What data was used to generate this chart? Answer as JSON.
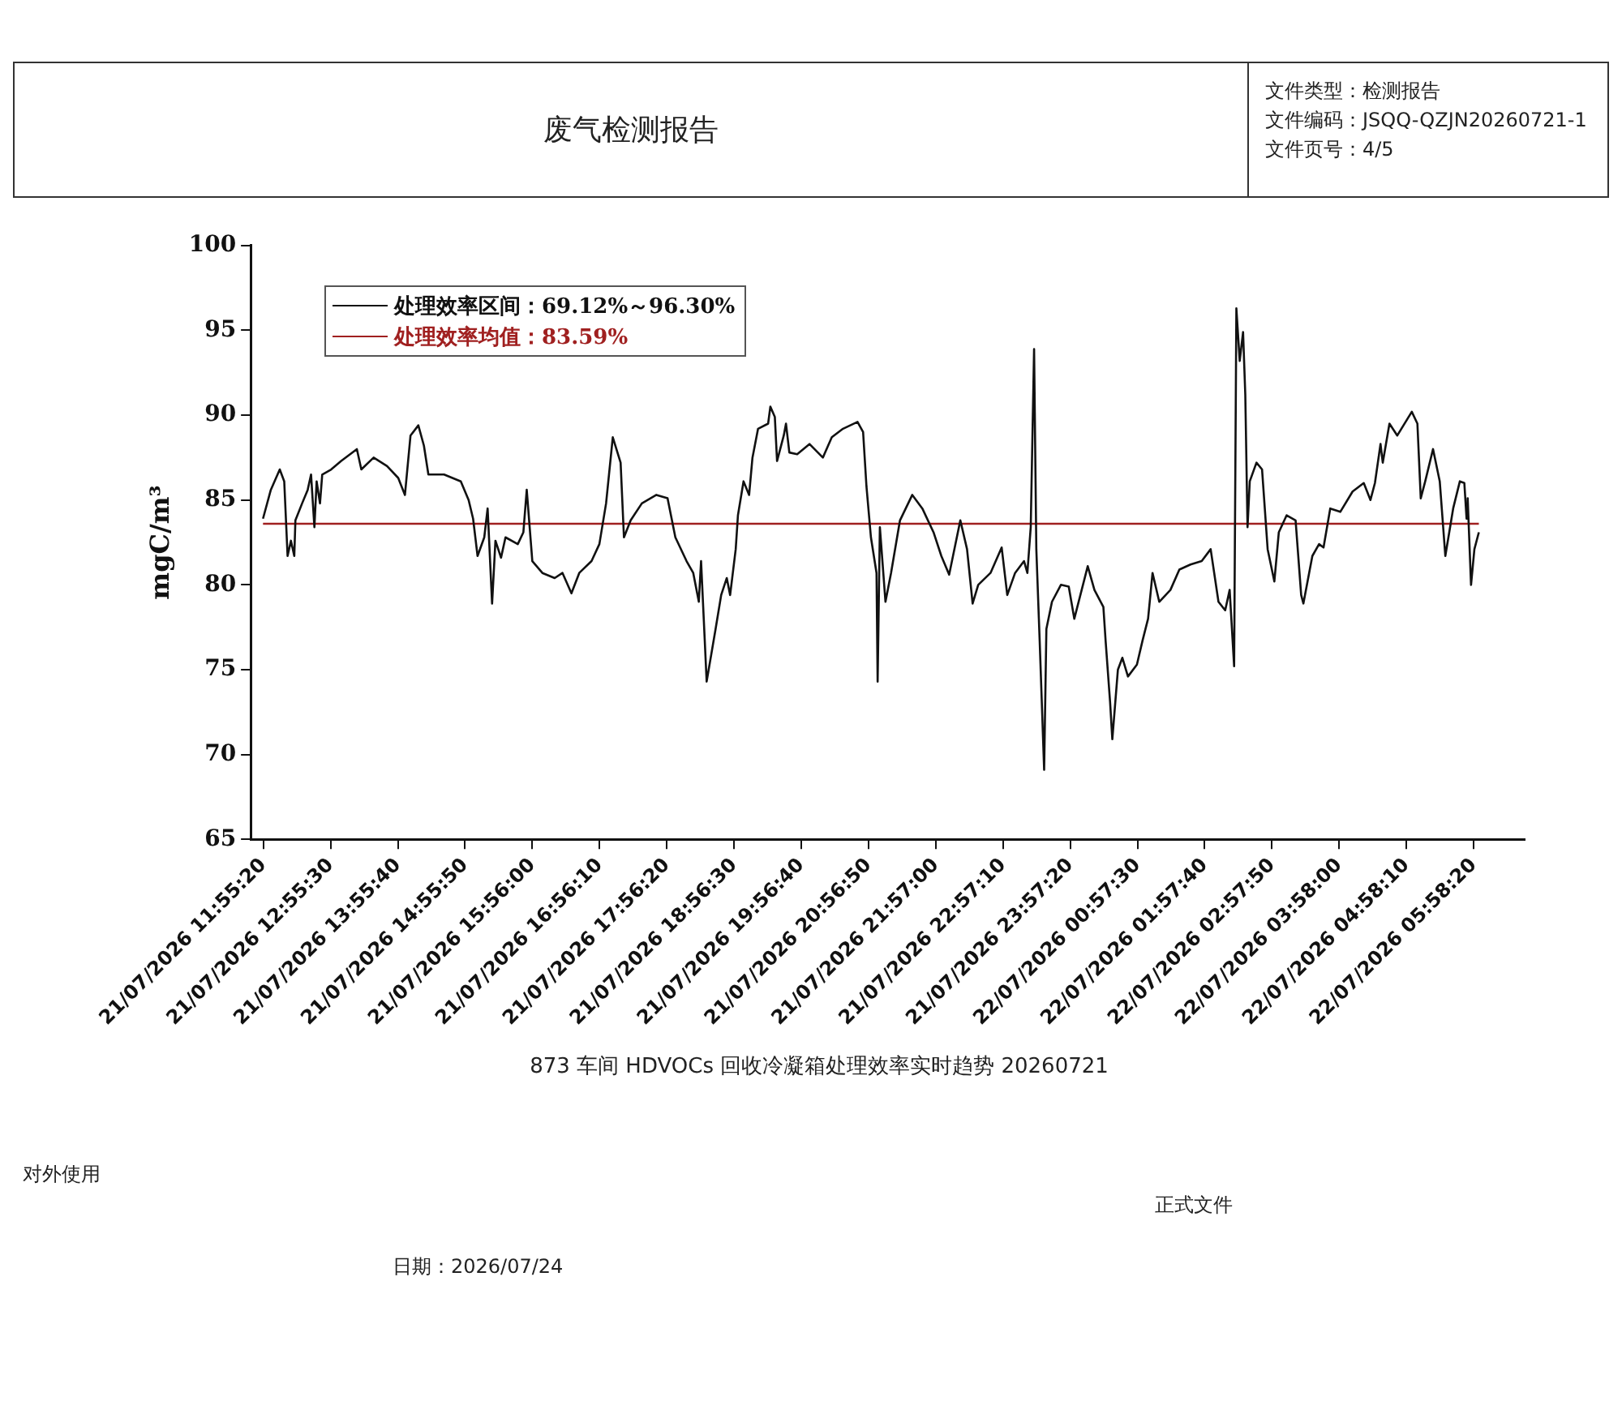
{
  "chart_data": {
    "type": "line",
    "title": "873 车间 HDVOCs 回收冷凝箱处理效率实时趋势 20260721",
    "subtitle": "废气检测报告",
    "ylabel": "mgC/m³",
    "xlim": [
      "2026-07-21T11:44",
      "2026-07-22T06:44"
    ],
    "ylim": [
      65,
      100
    ],
    "yticks": [
      65,
      70,
      75,
      80,
      85,
      90,
      95,
      100
    ],
    "xticks": [
      {
        "value": "2026-07-21T11:55:20",
        "label": "21/07/2026 11:55:20"
      },
      {
        "value": "2026-07-21T12:55:30",
        "label": "21/07/2026 12:55:30"
      },
      {
        "value": "2026-07-21T13:55:40",
        "label": "21/07/2026 13:55:40"
      },
      {
        "value": "2026-07-21T14:55:50",
        "label": "21/07/2026 14:55:50"
      },
      {
        "value": "2026-07-21T15:56:00",
        "label": "21/07/2026 15:56:00"
      },
      {
        "value": "2026-07-21T16:56:10",
        "label": "21/07/2026 16:56:10"
      },
      {
        "value": "2026-07-21T17:56:20",
        "label": "21/07/2026 17:56:20"
      },
      {
        "value": "2026-07-21T18:56:30",
        "label": "21/07/2026 18:56:30"
      },
      {
        "value": "2026-07-21T19:56:40",
        "label": "21/07/2026 19:56:40"
      },
      {
        "value": "2026-07-21T20:56:50",
        "label": "21/07/2026 20:56:50"
      },
      {
        "value": "2026-07-21T21:57:00",
        "label": "21/07/2026 21:57:00"
      },
      {
        "value": "2026-07-21T22:57:10",
        "label": "21/07/2026 22:57:10"
      },
      {
        "value": "2026-07-21T23:57:20",
        "label": "21/07/2026 23:57:20"
      },
      {
        "value": "2026-07-22T00:57:30",
        "label": "22/07/2026 00:57:30"
      },
      {
        "value": "2026-07-22T01:57:40",
        "label": "22/07/2026 01:57:40"
      },
      {
        "value": "2026-07-22T02:57:50",
        "label": "22/07/2026 02:57:50"
      },
      {
        "value": "2026-07-22T03:58:00",
        "label": "22/07/2026 03:58:00"
      },
      {
        "value": "2026-07-22T04:58:10",
        "label": "22/07/2026 04:58:10"
      },
      {
        "value": "2026-07-22T05:58:20",
        "label": "22/07/2026 05:58:20"
      }
    ],
    "legend": "top left",
    "grid": false,
    "annotations": [
      "文件类型：检测报告",
      "文件编码：JSQQ-QZJN20260721-1",
      "文件页号：4/5",
      "对外使用",
      "正式文件",
      "日期：2026/07/24"
    ],
    "series": [
      {
        "name": "处理效率区间：69.12%～96.30%",
        "color": "#111111",
        "x": [
          "2026-07-21T11:55",
          "2026-07-21T12:02",
          "2026-07-21T12:10",
          "2026-07-21T12:14",
          "2026-07-21T12:17",
          "2026-07-21T12:20",
          "2026-07-21T12:23",
          "2026-07-21T12:24",
          "2026-07-21T12:30",
          "2026-07-21T12:35",
          "2026-07-21T12:38",
          "2026-07-21T12:41",
          "2026-07-21T12:43",
          "2026-07-21T12:46",
          "2026-07-21T12:48",
          "2026-07-21T12:56",
          "2026-07-21T13:05",
          "2026-07-21T13:19",
          "2026-07-21T13:23",
          "2026-07-21T13:34",
          "2026-07-21T13:46",
          "2026-07-21T13:56",
          "2026-07-21T14:02",
          "2026-07-21T14:07",
          "2026-07-21T14:14",
          "2026-07-21T14:19",
          "2026-07-21T14:23",
          "2026-07-21T14:37",
          "2026-07-21T14:52",
          "2026-07-21T14:59",
          "2026-07-21T15:03",
          "2026-07-21T15:07",
          "2026-07-21T15:13",
          "2026-07-21T15:16",
          "2026-07-21T15:20",
          "2026-07-21T15:23",
          "2026-07-21T15:28",
          "2026-07-21T15:32",
          "2026-07-21T15:43",
          "2026-07-21T15:48",
          "2026-07-21T15:51",
          "2026-07-21T15:56",
          "2026-07-21T16:05",
          "2026-07-21T16:16",
          "2026-07-21T16:23",
          "2026-07-21T16:31",
          "2026-07-21T16:38",
          "2026-07-21T16:49",
          "2026-07-21T16:56",
          "2026-07-21T17:02",
          "2026-07-21T17:08",
          "2026-07-21T17:15",
          "2026-07-21T17:18",
          "2026-07-21T17:24",
          "2026-07-21T17:34",
          "2026-07-21T17:47",
          "2026-07-21T17:57",
          "2026-07-21T18:04",
          "2026-07-21T18:14",
          "2026-07-21T18:20",
          "2026-07-21T18:25",
          "2026-07-21T18:27",
          "2026-07-21T18:32",
          "2026-07-21T18:40",
          "2026-07-21T18:45",
          "2026-07-21T18:50",
          "2026-07-21T18:53",
          "2026-07-21T18:58",
          "2026-07-21T19:00",
          "2026-07-21T19:05",
          "2026-07-21T19:10",
          "2026-07-21T19:13",
          "2026-07-21T19:18",
          "2026-07-21T19:27",
          "2026-07-21T19:29",
          "2026-07-21T19:33",
          "2026-07-21T19:35",
          "2026-07-21T19:41",
          "2026-07-21T19:43",
          "2026-07-21T19:46",
          "2026-07-21T19:53",
          "2026-07-21T20:04",
          "2026-07-21T20:16",
          "2026-07-21T20:24",
          "2026-07-21T20:34",
          "2026-07-21T20:47",
          "2026-07-21T20:52",
          "2026-07-21T20:55",
          "2026-07-21T20:59",
          "2026-07-21T21:04",
          "2026-07-21T21:05",
          "2026-07-21T21:07",
          "2026-07-21T21:12",
          "2026-07-21T21:17",
          "2026-07-21T21:25",
          "2026-07-21T21:36",
          "2026-07-21T21:45",
          "2026-07-21T21:55",
          "2026-07-21T22:02",
          "2026-07-21T22:09",
          "2026-07-21T22:19",
          "2026-07-21T22:25",
          "2026-07-21T22:30",
          "2026-07-21T22:35",
          "2026-07-21T22:46",
          "2026-07-21T22:56",
          "2026-07-21T23:01",
          "2026-07-21T23:08",
          "2026-07-21T23:16",
          "2026-07-21T23:19",
          "2026-07-21T23:22",
          "2026-07-21T23:25",
          "2026-07-21T23:27",
          "2026-07-21T23:30",
          "2026-07-21T23:34",
          "2026-07-21T23:36",
          "2026-07-21T23:41",
          "2026-07-21T23:49",
          "2026-07-21T23:56",
          "2026-07-22T00:01",
          "2026-07-22T00:13",
          "2026-07-22T00:19",
          "2026-07-22T00:27",
          "2026-07-22T00:29",
          "2026-07-22T00:33",
          "2026-07-22T00:35",
          "2026-07-22T00:40",
          "2026-07-22T00:44",
          "2026-07-22T00:49",
          "2026-07-22T00:57",
          "2026-07-22T01:02",
          "2026-07-22T01:07",
          "2026-07-22T01:11",
          "2026-07-22T01:17",
          "2026-07-22T01:27",
          "2026-07-22T01:35",
          "2026-07-22T01:45",
          "2026-07-22T01:55",
          "2026-07-22T02:03",
          "2026-07-22T02:10",
          "2026-07-22T02:16",
          "2026-07-22T02:20",
          "2026-07-22T02:24",
          "2026-07-22T02:26",
          "2026-07-22T02:29",
          "2026-07-22T02:32",
          "2026-07-22T02:34",
          "2026-07-22T02:36",
          "2026-07-22T02:38",
          "2026-07-22T02:44",
          "2026-07-22T02:49",
          "2026-07-22T02:54",
          "2026-07-22T03:00",
          "2026-07-22T03:04",
          "2026-07-22T03:11",
          "2026-07-22T03:19",
          "2026-07-22T03:24",
          "2026-07-22T03:26",
          "2026-07-22T03:34",
          "2026-07-22T03:40",
          "2026-07-22T03:44",
          "2026-07-22T03:50",
          "2026-07-22T03:59",
          "2026-07-22T04:10",
          "2026-07-22T04:20",
          "2026-07-22T04:26",
          "2026-07-22T04:30",
          "2026-07-22T04:35",
          "2026-07-22T04:37",
          "2026-07-22T04:43",
          "2026-07-22T04:50",
          "2026-07-22T05:03",
          "2026-07-22T05:08",
          "2026-07-22T05:11",
          "2026-07-22T05:15",
          "2026-07-22T05:22",
          "2026-07-22T05:28",
          "2026-07-22T05:33",
          "2026-07-22T05:40",
          "2026-07-22T05:46",
          "2026-07-22T05:50",
          "2026-07-22T05:52",
          "2026-07-22T05:53",
          "2026-07-22T05:56",
          "2026-07-22T05:59",
          "2026-07-22T06:03"
        ],
        "values": [
          83.9,
          85.6,
          86.8,
          86.1,
          81.7,
          82.6,
          81.7,
          83.8,
          84.8,
          85.6,
          86.5,
          83.4,
          86.1,
          84.8,
          86.5,
          86.8,
          87.3,
          88.0,
          86.8,
          87.5,
          87.0,
          86.3,
          85.3,
          88.8,
          89.4,
          88.2,
          86.5,
          86.5,
          86.1,
          85.0,
          83.9,
          81.7,
          82.8,
          84.5,
          78.9,
          82.6,
          81.6,
          82.8,
          82.4,
          83.1,
          85.6,
          81.4,
          80.7,
          80.4,
          80.7,
          79.5,
          80.7,
          81.4,
          82.4,
          84.8,
          88.7,
          87.2,
          82.8,
          83.8,
          84.8,
          85.3,
          85.1,
          82.8,
          81.4,
          80.7,
          79.0,
          81.4,
          74.3,
          77.4,
          79.4,
          80.4,
          79.4,
          82.1,
          84.1,
          86.1,
          85.3,
          87.5,
          89.2,
          89.5,
          90.5,
          89.9,
          87.3,
          88.8,
          89.5,
          87.8,
          87.7,
          88.3,
          87.5,
          88.7,
          89.2,
          89.6,
          89.0,
          85.8,
          82.8,
          80.7,
          74.3,
          83.4,
          79.0,
          80.7,
          83.8,
          85.3,
          84.5,
          83.1,
          81.7,
          80.6,
          83.8,
          82.1,
          78.9,
          80.0,
          80.7,
          82.2,
          79.4,
          80.7,
          81.4,
          80.7,
          83.4,
          93.9,
          82.1,
          76.7,
          69.1,
          77.4,
          79.0,
          80.0,
          79.9,
          78.0,
          81.1,
          79.7,
          78.7,
          76.7,
          73.1,
          70.9,
          75.0,
          75.7,
          74.6,
          75.3,
          76.7,
          78.0,
          80.7,
          79.0,
          79.7,
          80.9,
          81.2,
          81.4,
          82.1,
          79.0,
          78.5,
          79.7,
          75.2,
          96.3,
          93.2,
          94.9,
          91.2,
          83.4,
          86.1,
          87.2,
          86.8,
          82.1,
          80.2,
          83.1,
          84.1,
          83.8,
          79.4,
          78.9,
          81.7,
          82.4,
          82.2,
          84.5,
          84.3,
          85.5,
          86.0,
          85.0,
          86.0,
          88.3,
          87.2,
          89.5,
          88.8,
          90.2,
          89.5,
          85.1,
          86.1,
          88.0,
          86.1,
          81.7,
          84.5,
          86.1,
          86.0,
          83.9,
          85.1,
          80.0,
          82.1,
          83.1
        ]
      },
      {
        "name": "处理效率均值：83.59%",
        "color": "#a02020",
        "x": [
          "2026-07-21T11:55",
          "2026-07-22T06:03"
        ],
        "values": [
          83.6,
          83.6
        ]
      }
    ]
  }
}
